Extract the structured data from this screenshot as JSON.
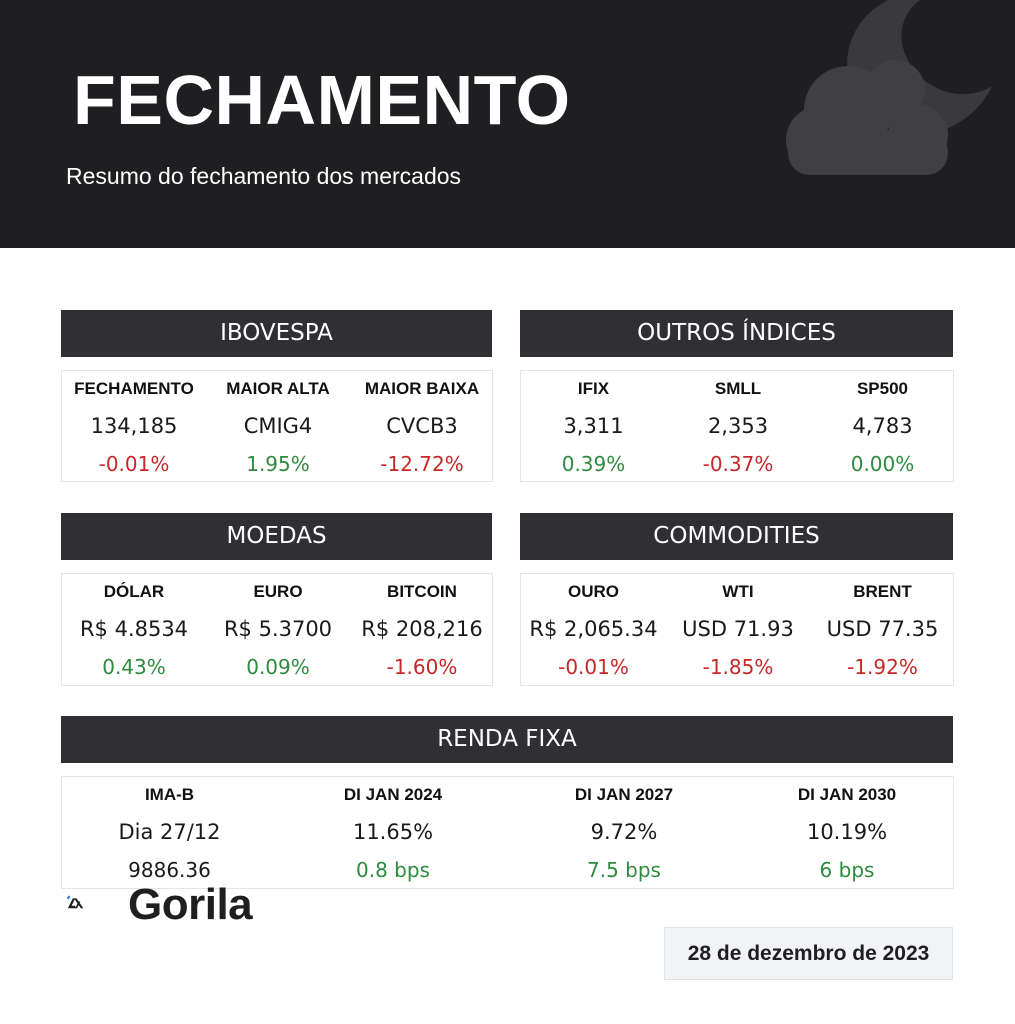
{
  "header": {
    "title": "FECHAMENTO",
    "subtitle": "Resumo do fechamento dos mercados",
    "icon": "cloud-moon-icon"
  },
  "sections": {
    "ibovespa": {
      "title": "IBOVESPA",
      "cols": [
        {
          "label": "FECHAMENTO",
          "value": "134,185",
          "change": "-0.01%",
          "trend": "neg"
        },
        {
          "label": "MAIOR ALTA",
          "value": "CMIG4",
          "change": "1.95%",
          "trend": "pos"
        },
        {
          "label": "MAIOR BAIXA",
          "value": "CVCB3",
          "change": "-12.72%",
          "trend": "neg"
        }
      ]
    },
    "outros": {
      "title": "OUTROS ÍNDICES",
      "cols": [
        {
          "label": "IFIX",
          "value": "3,311",
          "change": "0.39%",
          "trend": "pos"
        },
        {
          "label": "SMLL",
          "value": "2,353",
          "change": "-0.37%",
          "trend": "neg"
        },
        {
          "label": "SP500",
          "value": "4,783",
          "change": "0.00%",
          "trend": "pos"
        }
      ]
    },
    "moedas": {
      "title": "MOEDAS",
      "cols": [
        {
          "label": "DÓLAR",
          "value": "R$ 4.8534",
          "change": "0.43%",
          "trend": "pos"
        },
        {
          "label": "EURO",
          "value": "R$ 5.3700",
          "change": "0.09%",
          "trend": "pos"
        },
        {
          "label": "BITCOIN",
          "value": "R$ 208,216",
          "change": "-1.60%",
          "trend": "neg"
        }
      ]
    },
    "commodities": {
      "title": "COMMODITIES",
      "cols": [
        {
          "label": "OURO",
          "value": "R$ 2,065.34",
          "change": "-0.01%",
          "trend": "neg"
        },
        {
          "label": "WTI",
          "value": "USD 71.93",
          "change": "-1.85%",
          "trend": "neg"
        },
        {
          "label": "BRENT",
          "value": "USD 77.35",
          "change": "-1.92%",
          "trend": "neg"
        }
      ]
    },
    "renda_fixa": {
      "title": "RENDA FIXA",
      "cols": [
        {
          "label": "IMA-B",
          "value": "Dia 27/12",
          "change": "9886.36",
          "trend": "neutral"
        },
        {
          "label": "DI JAN 2024",
          "value": "11.65%",
          "change": "0.8 bps",
          "trend": "pos"
        },
        {
          "label": "DI JAN 2027",
          "value": "9.72%",
          "change": "7.5 bps",
          "trend": "pos"
        },
        {
          "label": "DI JAN 2030",
          "value": "10.19%",
          "change": "6 bps",
          "trend": "pos"
        }
      ]
    }
  },
  "brand": {
    "name": "Gorila",
    "accent": "#3d7ee0"
  },
  "date": "28 de dezembro de 2023",
  "colors": {
    "positive": "#2e8b3e",
    "negative": "#c62828",
    "header_bg": "#1f1f22",
    "section_bg": "#303034"
  }
}
